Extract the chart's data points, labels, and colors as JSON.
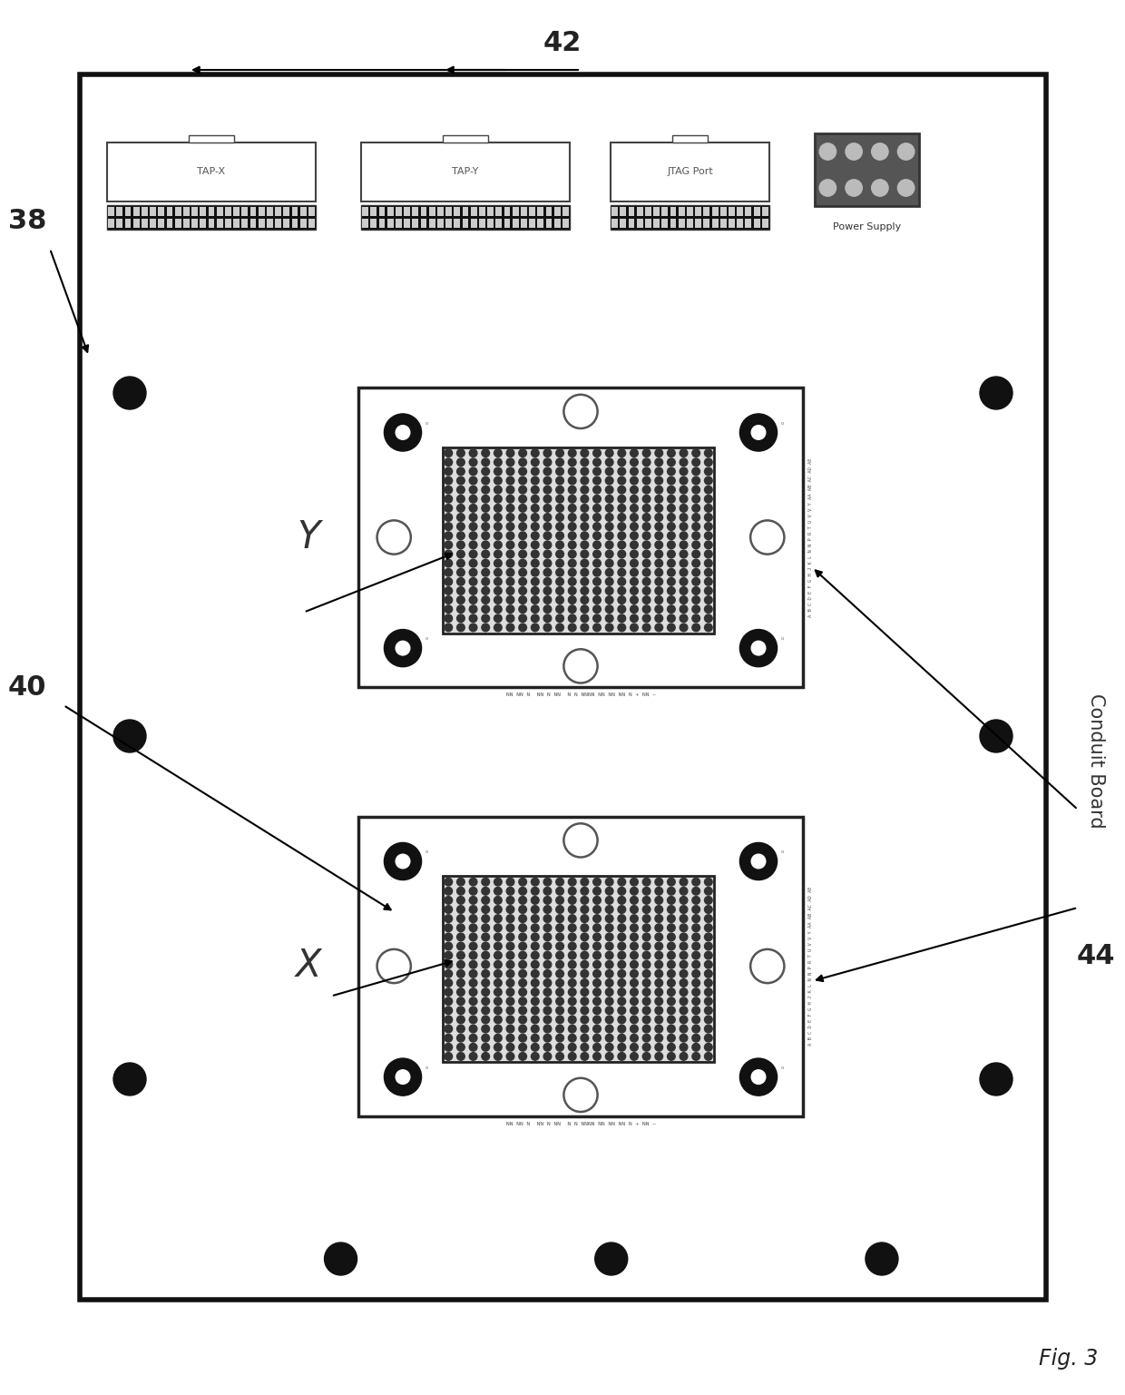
{
  "bg_color": "#ffffff",
  "board_facecolor": "#ffffff",
  "board_edge_color": "#111111",
  "fig_label": "Fig. 3",
  "label_38": "38",
  "label_40": "40",
  "label_42": "42",
  "label_44": "44",
  "label_conduit": "Conduit Board",
  "chip_Y_label": "Y",
  "chip_X_label": "X",
  "tap_labels": [
    "TAP-X",
    "TAP-Y",
    "JTAG Port"
  ],
  "power_label": "Power Supply",
  "bottom_text": "NN NN N NN N NN NN NN N N NNNN NNN + NN ~",
  "right_text": "A B C D E F G H J K L N N P R T U V V Y AA AB AC AD AE"
}
